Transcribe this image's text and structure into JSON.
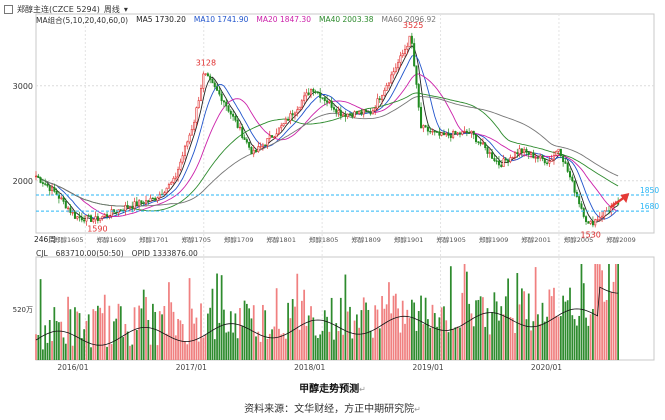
{
  "toolbar": {
    "title": "郑醇主连(CZCE 5294)",
    "period": "周线"
  },
  "ma_legend": [
    {
      "text": "MA组合(5,10,20,40,60,0)",
      "color": "#333333"
    },
    {
      "text": "MA5 1730.20",
      "color": "#222222"
    },
    {
      "text": "MA10 1741.90",
      "color": "#2255cc"
    },
    {
      "text": "MA20 1847.30",
      "color": "#cc22aa"
    },
    {
      "text": "MA40 2003.38",
      "color": "#2e8b2e"
    },
    {
      "text": "MA60 2096.92",
      "color": "#777777"
    }
  ],
  "vol_legend": [
    {
      "text": "CJL",
      "color": "#333333"
    },
    {
      "text": "683710.00(50:50)",
      "color": "#333333"
    },
    {
      "text": "OPID 1333876.00",
      "color": "#333333"
    }
  ],
  "annotations": {
    "peak1": "3128",
    "peak2": "3525",
    "low1": "1590",
    "low2": "1530",
    "level_upper": "1850",
    "level_lower": "1680",
    "weeks": "246周"
  },
  "y_axis_labels": [
    "3000",
    "2000"
  ],
  "vol_axis_label": "520万",
  "contract_labels": [
    "郑醇1605",
    "郑醇1609",
    "郑醇1701",
    "郑醇1705",
    "郑醇1709",
    "郑醇1801",
    "郑醇1805",
    "郑醇1809",
    "郑醇1901",
    "郑醇1905",
    "郑醇1909",
    "郑醇2001",
    "郑醇2005",
    "郑醇2009"
  ],
  "date_labels": [
    "2016/01",
    "2017/01",
    "2018/01",
    "2019/01",
    "2020/01"
  ],
  "captions": {
    "title": "甲醇走势预测",
    "source": "资料来源：文华财经，方正中期研究院"
  },
  "colors": {
    "up": "#e03030",
    "down": "#1f8a1f",
    "vol_up": "#f08080",
    "vol_down": "#2e8b2e",
    "level_line": "#29b6f6",
    "arrow": "#e53935"
  },
  "chart_data": {
    "type": "candlestick",
    "period": "weekly",
    "ylim": [
      1450,
      3650
    ],
    "anchor_points": [
      {
        "date": "2015/08",
        "price": 2050
      },
      {
        "date": "2015/10",
        "price": 1870
      },
      {
        "date": "2015/12",
        "price": 1620
      },
      {
        "date": "2016/02",
        "price": 1590
      },
      {
        "date": "2016/05",
        "price": 1720
      },
      {
        "date": "2016/08",
        "price": 1810
      },
      {
        "date": "2016/10",
        "price": 2000
      },
      {
        "date": "2016/12",
        "price": 2620
      },
      {
        "date": "2017/01",
        "price": 3128
      },
      {
        "date": "2017/03",
        "price": 2850
      },
      {
        "date": "2017/06",
        "price": 2280
      },
      {
        "date": "2017/09",
        "price": 2580
      },
      {
        "date": "2017/12",
        "price": 2980
      },
      {
        "date": "2018/03",
        "price": 2700
      },
      {
        "date": "2018/06",
        "price": 2720
      },
      {
        "date": "2018/09",
        "price": 3300
      },
      {
        "date": "2018/10",
        "price": 3525
      },
      {
        "date": "2018/11",
        "price": 2560
      },
      {
        "date": "2019/01",
        "price": 2470
      },
      {
        "date": "2019/04",
        "price": 2510
      },
      {
        "date": "2019/07",
        "price": 2170
      },
      {
        "date": "2019/09",
        "price": 2320
      },
      {
        "date": "2019/12",
        "price": 2200
      },
      {
        "date": "2020/01",
        "price": 2350
      },
      {
        "date": "2020/03",
        "price": 1790
      },
      {
        "date": "2020/04",
        "price": 1530
      },
      {
        "date": "2020/06",
        "price": 1700
      },
      {
        "date": "2020/07",
        "price": 1760
      }
    ],
    "levels": [
      1850,
      1680
    ]
  }
}
